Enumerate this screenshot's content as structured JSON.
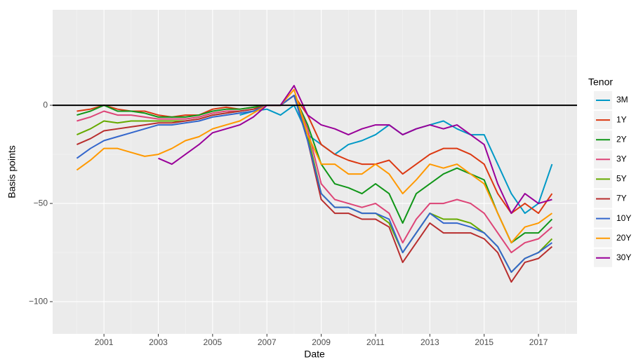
{
  "chart_data": {
    "type": "line",
    "x_label": "Date",
    "y_label": "Basis points",
    "legend_title": "Tenor",
    "x": [
      2000,
      2000.5,
      2001,
      2001.5,
      2002,
      2002.5,
      2003,
      2003.5,
      2004,
      2004.5,
      2005,
      2005.5,
      2006,
      2006.5,
      2007,
      2007.5,
      2008,
      2008.5,
      2009,
      2009.5,
      2010,
      2010.5,
      2011,
      2011.5,
      2012,
      2012.5,
      2013,
      2013.5,
      2014,
      2014.5,
      2015,
      2015.5,
      2016,
      2016.5,
      2017,
      2017.5
    ],
    "series": [
      {
        "name": "3M",
        "color": "#0099c6",
        "values": [
          null,
          null,
          null,
          null,
          null,
          null,
          null,
          null,
          null,
          null,
          null,
          null,
          -5,
          -3,
          -2,
          -5,
          0,
          -15,
          -20,
          -25,
          -20,
          -18,
          -15,
          -10,
          -15,
          -12,
          -10,
          -8,
          -12,
          -15,
          -15,
          -30,
          -45,
          -55,
          -50,
          -30
        ]
      },
      {
        "name": "1Y",
        "color": "#dc3912",
        "values": [
          -3,
          -2,
          0,
          -2,
          -3,
          -3,
          -5,
          -6,
          -5,
          -5,
          -2,
          -1,
          -2,
          -1,
          0,
          0,
          5,
          -5,
          -20,
          -25,
          -28,
          -30,
          -30,
          -28,
          -35,
          -30,
          -25,
          -22,
          -22,
          -25,
          -30,
          -45,
          -55,
          -50,
          -55,
          -45
        ]
      },
      {
        "name": "2Y",
        "color": "#109618",
        "values": [
          -5,
          -3,
          0,
          -3,
          -3,
          -4,
          -6,
          -6,
          -6,
          -5,
          -3,
          -2,
          -2,
          -1,
          0,
          0,
          5,
          -10,
          -30,
          -40,
          -42,
          -45,
          -40,
          -45,
          -60,
          -45,
          -40,
          -35,
          -32,
          -35,
          -38,
          -55,
          -70,
          -65,
          -65,
          -58
        ]
      },
      {
        "name": "3Y",
        "color": "#dd4477",
        "values": [
          -8,
          -6,
          -3,
          -5,
          -5,
          -6,
          -7,
          -7,
          -7,
          -6,
          -4,
          -3,
          -3,
          -2,
          0,
          0,
          5,
          -12,
          -40,
          -48,
          -50,
          -52,
          -50,
          -55,
          -70,
          -58,
          -50,
          -50,
          -48,
          -50,
          -55,
          -65,
          -75,
          -70,
          -68,
          -62
        ]
      },
      {
        "name": "5Y",
        "color": "#66aa00",
        "values": [
          -15,
          -12,
          -8,
          -9,
          -8,
          -8,
          -8,
          -8,
          -8,
          -7,
          -5,
          -4,
          -3,
          -2,
          0,
          0,
          5,
          -15,
          -45,
          -52,
          -52,
          -55,
          -55,
          -60,
          -75,
          -65,
          -55,
          -58,
          -58,
          -60,
          -65,
          -72,
          -85,
          -78,
          -75,
          -68
        ]
      },
      {
        "name": "7Y",
        "color": "#b82e2e",
        "values": [
          -20,
          -17,
          -13,
          -12,
          -11,
          -10,
          -9,
          -9,
          -8,
          -7,
          -5,
          -4,
          -3,
          -2,
          0,
          0,
          5,
          -18,
          -48,
          -55,
          -55,
          -58,
          -58,
          -62,
          -80,
          -70,
          -60,
          -65,
          -65,
          -65,
          -68,
          -75,
          -90,
          -80,
          -78,
          -72
        ]
      },
      {
        "name": "10Y",
        "color": "#3366cc",
        "values": [
          -27,
          -22,
          -18,
          -16,
          -14,
          -12,
          -10,
          -10,
          -9,
          -8,
          -6,
          -5,
          -4,
          -3,
          0,
          0,
          5,
          -18,
          -45,
          -52,
          -52,
          -55,
          -55,
          -58,
          -75,
          -65,
          -55,
          -60,
          -60,
          -62,
          -65,
          -72,
          -85,
          -78,
          -75,
          -70
        ]
      },
      {
        "name": "20Y",
        "color": "#ff9900",
        "values": [
          -33,
          -28,
          -22,
          -22,
          -24,
          -26,
          -25,
          -22,
          -18,
          -16,
          -12,
          -10,
          -8,
          -4,
          0,
          0,
          8,
          -15,
          -30,
          -30,
          -35,
          -35,
          -30,
          -35,
          -45,
          -38,
          -30,
          -32,
          -30,
          -35,
          -40,
          -55,
          -70,
          -62,
          -60,
          -55
        ]
      },
      {
        "name": "30Y",
        "color": "#990099",
        "values": [
          null,
          null,
          null,
          null,
          null,
          null,
          -27,
          -30,
          -25,
          -20,
          -14,
          -12,
          -10,
          -6,
          0,
          0,
          10,
          -5,
          -10,
          -12,
          -15,
          -12,
          -10,
          -10,
          -15,
          -12,
          -10,
          -12,
          -10,
          -15,
          -20,
          -40,
          -55,
          -45,
          -50,
          -48
        ]
      }
    ],
    "xlim": [
      1999.11,
      2018.42
    ],
    "xticks": [
      2001,
      2003,
      2005,
      2007,
      2009,
      2011,
      2013,
      2015,
      2017
    ],
    "ylim": [
      -116.4,
      48.6
    ],
    "yticks": [
      {
        "value": -100,
        "label": "−100"
      },
      {
        "value": -50,
        "label": "−50"
      },
      0
    ],
    "hline": 0,
    "grid": true
  }
}
